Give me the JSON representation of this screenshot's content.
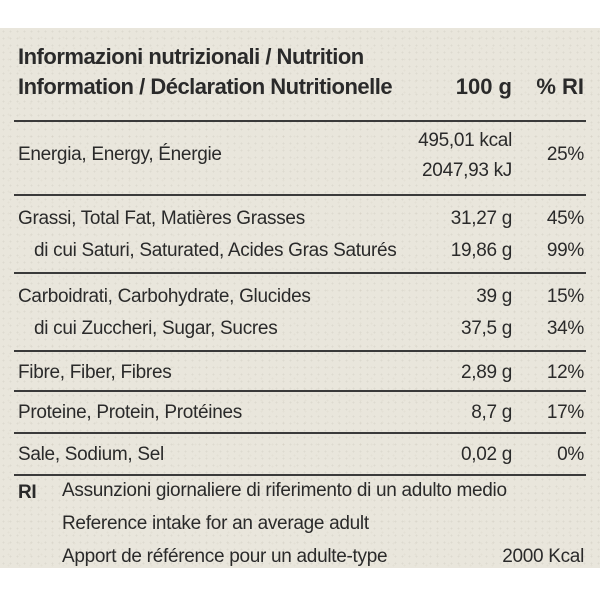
{
  "header": {
    "title_line1": "Informazioni nutrizionali / Nutrition",
    "title_line2": "Information / Déclaration Nutritionelle",
    "col_100g": "100 g",
    "col_ri": "% RI"
  },
  "energy": {
    "name": "Energia, Energy, Énergie",
    "kcal": "495,01 kcal",
    "kj": "2047,93 kJ",
    "ri": "25%"
  },
  "fat": {
    "name": "Grassi, Total Fat, Matières Grasses",
    "value": "31,27 g",
    "ri": "45%"
  },
  "saturates": {
    "name": "di cui Saturi, Saturated, Acides Gras Saturés",
    "value": "19,86 g",
    "ri": "99%"
  },
  "carbs": {
    "name": "Carboidrati, Carbohydrate, Glucides",
    "value": "39 g",
    "ri": "15%"
  },
  "sugars": {
    "name": "di cui Zuccheri, Sugar, Sucres",
    "value": "37,5 g",
    "ri": "34%"
  },
  "fibre": {
    "name": "Fibre, Fiber, Fibres",
    "value": "2,89 g",
    "ri": "12%"
  },
  "protein": {
    "name": "Proteine, Protein, Protéines",
    "value": "8,7 g",
    "ri": "17%"
  },
  "salt": {
    "name": "Sale, Sodium, Sel",
    "value": "0,02 g",
    "ri": "0%"
  },
  "footnote": {
    "abbr": "RI",
    "line_it": "Assunzioni giornaliere di riferimento di un adulto medio",
    "line_en": "Reference intake for an average adult",
    "line_fr": "Apport de référence pour un adulte-type",
    "kcal": "2000 Kcal"
  }
}
